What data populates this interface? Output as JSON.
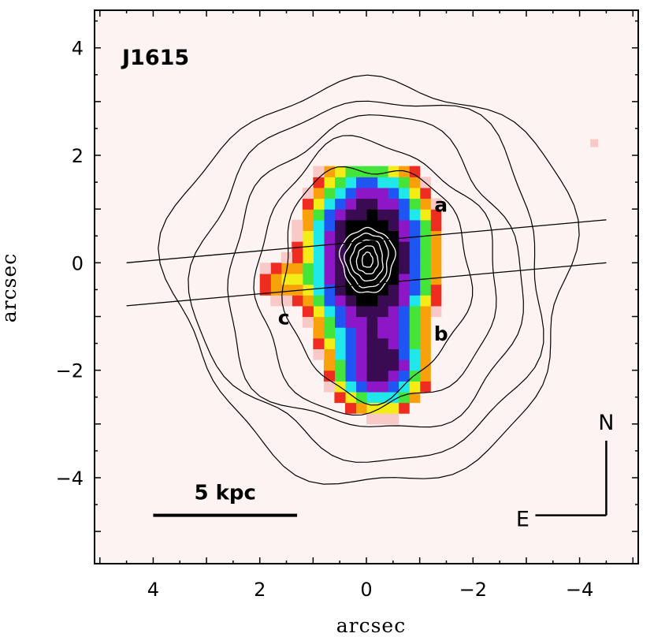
{
  "chart_data": {
    "type": "heatmap",
    "title": "J1615",
    "xlabel": "arcsec",
    "ylabel": "arcsec",
    "xlim": [
      5.1,
      -5.1
    ],
    "ylim": [
      -5.6,
      4.7
    ],
    "x_ticks": [
      4,
      2,
      0,
      -2,
      -4
    ],
    "x_tick_labels": [
      "4",
      "2",
      "0",
      "−2",
      "−4"
    ],
    "y_ticks": [
      4,
      2,
      0,
      -2,
      -4
    ],
    "y_tick_labels": [
      "4",
      "2",
      "0",
      "−2",
      "−4"
    ],
    "grid": false,
    "background_color": "#fdf3f2",
    "contours": {
      "center": [
        -0.15,
        -0.3
      ],
      "outer_levels": [
        {
          "rx": 3.75,
          "ry": 3.75
        },
        {
          "rx": 3.25,
          "ry": 3.35
        },
        {
          "rx": 2.75,
          "ry": 2.9
        },
        {
          "rx": 2.25,
          "ry": 2.5
        },
        {
          "rx": 1.75,
          "ry": 2.15
        }
      ],
      "inner_levels": [
        {
          "rx": 0.5,
          "ry": 0.6
        },
        {
          "rx": 0.4,
          "ry": 0.5
        },
        {
          "rx": 0.3,
          "ry": 0.38
        },
        {
          "rx": 0.2,
          "ry": 0.26
        },
        {
          "rx": 0.1,
          "ry": 0.14
        }
      ],
      "inner_center": [
        -0.02,
        0.05
      ]
    },
    "emission_components": [
      {
        "label": "a",
        "x": -0.05,
        "y": 0.0,
        "peak": 1.0,
        "label_pos": [
          -1.4,
          0.95
        ]
      },
      {
        "label": "b",
        "x": -0.25,
        "y": -1.95,
        "peak": 0.55,
        "label_pos": [
          -1.4,
          -1.45
        ]
      },
      {
        "label": "c",
        "x": 1.65,
        "y": -0.35,
        "peak": 0.13,
        "label_pos": [
          1.55,
          -1.15
        ]
      }
    ],
    "slit_lines": [
      {
        "x1": 4.5,
        "y1": 0.0,
        "x2": -4.5,
        "y2": 0.8
      },
      {
        "x1": 4.5,
        "y1": -0.8,
        "x2": -4.5,
        "y2": 0.0
      }
    ],
    "scale_bar": {
      "label": "5 kpc",
      "x_from": 4.0,
      "x_to": 1.3,
      "y": -4.7
    },
    "compass": {
      "north": "N",
      "east": "E",
      "corner_x": -4.5,
      "corner_y": -4.7,
      "length_arcsec": 1.4
    },
    "colormap": [
      "#f9c9c8",
      "#ee2c1f",
      "#f9a10a",
      "#f3ec16",
      "#44e43a",
      "#20e8ea",
      "#1f55f2",
      "#8d17c6",
      "#3a0a52",
      "#000000"
    ]
  }
}
